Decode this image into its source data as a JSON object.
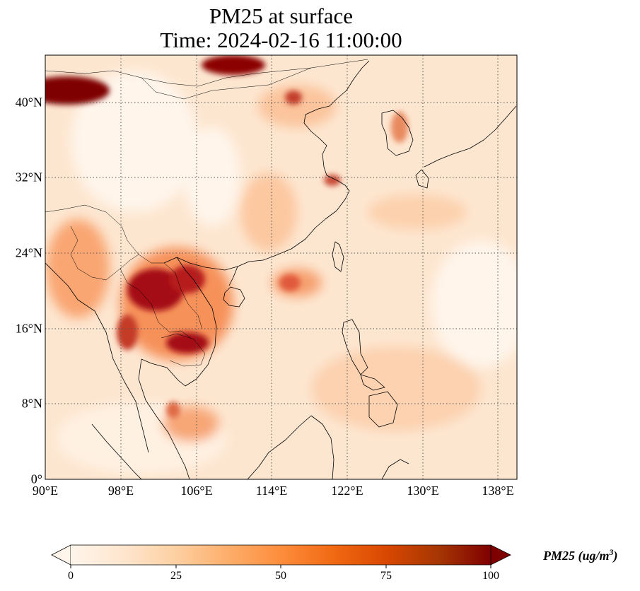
{
  "title_line1": "PM25 at surface",
  "title_line2": "Time: 2024-02-16 11:00:00",
  "lat_labels": [
    "40°N",
    "32°N",
    "24°N",
    "16°N",
    "8°N",
    "0°"
  ],
  "lon_labels": [
    "90°E",
    "98°E",
    "106°E",
    "114°E",
    "122°E",
    "130°E",
    "138°E"
  ],
  "colorbar": {
    "ticks": [
      "0",
      "25",
      "50",
      "75",
      "100"
    ],
    "label_prefix": "PM25 (ug/m",
    "label_sup": "3",
    "label_suffix": ")",
    "min": 0,
    "max": 100,
    "extend": "both",
    "colormap": [
      "#fff5eb",
      "#fee6ce",
      "#fdd0a2",
      "#fdae6b",
      "#fd8d3c",
      "#f16913",
      "#d94801",
      "#a63603",
      "#7f2704"
    ]
  },
  "map": {
    "projection": "PlateCarree",
    "lon_range": [
      90,
      140
    ],
    "lat_range": [
      0,
      45
    ],
    "gridlines_lon": [
      90,
      98,
      106,
      114,
      122,
      130,
      138
    ],
    "gridlines_lat": [
      0,
      8,
      16,
      24,
      32,
      40
    ],
    "background_color": "#fde6d0"
  }
}
